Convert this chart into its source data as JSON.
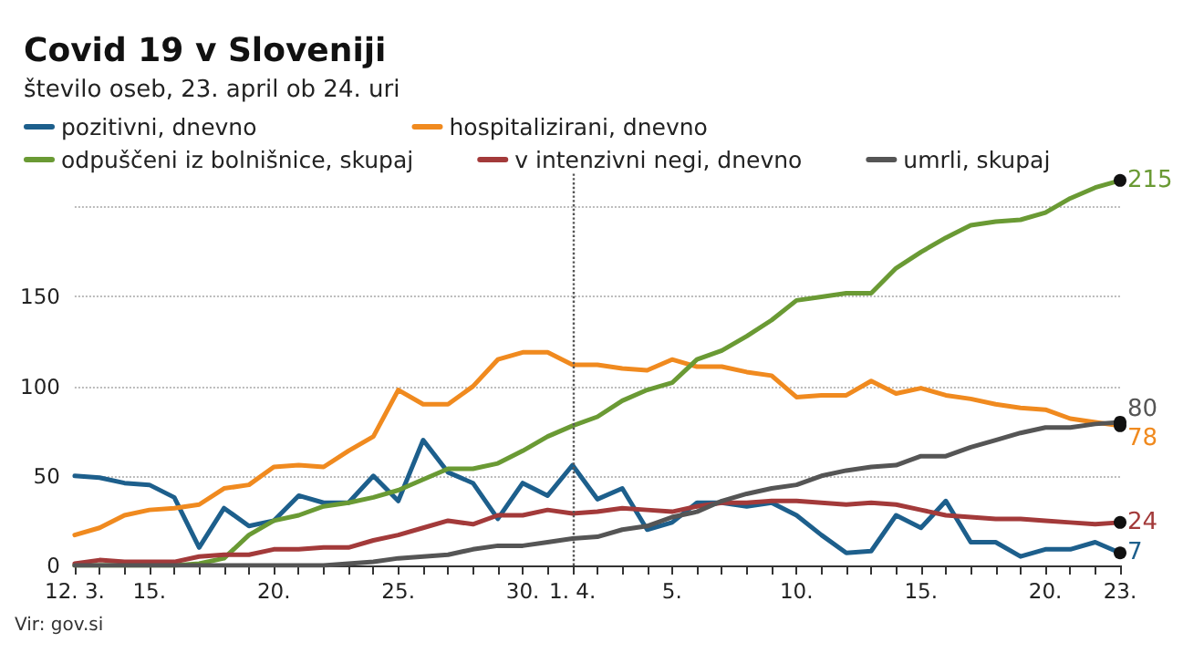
{
  "chart_data": {
    "type": "line",
    "title": "Covid 19 v Sloveniji",
    "subtitle": "število oseb, 23. april ob 24. uri",
    "categories": [
      "12. 3.",
      null,
      null,
      "15.",
      null,
      null,
      null,
      null,
      "20.",
      null,
      null,
      null,
      null,
      "25.",
      null,
      null,
      null,
      null,
      "30.",
      null,
      "1. 4.",
      null,
      null,
      null,
      "5.",
      null,
      null,
      null,
      null,
      "10.",
      null,
      null,
      null,
      null,
      "15.",
      null,
      null,
      null,
      null,
      "20.",
      null,
      null,
      "23."
    ],
    "series": [
      {
        "name": "pozitivni, dnevno",
        "color": "#1d5f8c",
        "values": [
          50,
          49,
          46,
          45,
          38,
          10,
          32,
          22,
          25,
          39,
          35,
          35,
          50,
          36,
          70,
          52,
          46,
          26,
          46,
          39,
          56,
          37,
          43,
          20,
          24,
          35,
          35,
          33,
          35,
          28,
          17,
          7,
          8,
          28,
          21,
          36,
          13,
          13,
          5,
          9,
          9,
          13,
          7
        ],
        "value_labels": [
          null,
          null,
          null,
          null,
          null,
          null,
          null,
          null,
          null,
          null,
          null,
          null,
          null,
          null,
          null,
          null,
          null,
          null,
          null,
          null,
          null,
          null,
          null,
          null,
          null,
          null,
          null,
          null,
          null,
          null,
          null,
          null,
          null,
          null,
          null,
          null,
          null,
          null,
          null,
          null,
          null,
          null,
          "7"
        ]
      },
      {
        "name": "hospitalizirani, dnevno",
        "color": "#f08a1f",
        "values": [
          17,
          21,
          28,
          31,
          32,
          34,
          43,
          45,
          55,
          56,
          55,
          64,
          72,
          98,
          90,
          90,
          100,
          115,
          119,
          119,
          112,
          112,
          110,
          109,
          115,
          111,
          111,
          108,
          106,
          94,
          95,
          95,
          103,
          96,
          99,
          95,
          93,
          90,
          88,
          87,
          82,
          80,
          78
        ],
        "value_labels": [
          null,
          null,
          null,
          null,
          null,
          null,
          null,
          null,
          null,
          null,
          null,
          null,
          null,
          null,
          null,
          null,
          null,
          null,
          null,
          null,
          null,
          null,
          null,
          null,
          null,
          null,
          null,
          null,
          null,
          null,
          null,
          null,
          null,
          null,
          null,
          null,
          null,
          null,
          null,
          null,
          null,
          null,
          "78"
        ]
      },
      {
        "name": "odpuščeni iz bolnišnice, skupaj",
        "color": "#6a9a34",
        "values": [
          0,
          0,
          0,
          0,
          0,
          1,
          4,
          17,
          25,
          28,
          33,
          35,
          38,
          42,
          48,
          54,
          54,
          57,
          64,
          72,
          78,
          83,
          92,
          98,
          102,
          115,
          120,
          128,
          137,
          148,
          150,
          152,
          152,
          166,
          175,
          183,
          190,
          192,
          193,
          197,
          205,
          211,
          215
        ],
        "value_labels": [
          null,
          null,
          null,
          null,
          null,
          null,
          null,
          null,
          null,
          null,
          null,
          null,
          null,
          null,
          null,
          null,
          null,
          null,
          null,
          null,
          null,
          null,
          null,
          null,
          null,
          null,
          null,
          null,
          null,
          null,
          null,
          null,
          null,
          null,
          null,
          null,
          null,
          null,
          null,
          null,
          null,
          null,
          "215"
        ]
      },
      {
        "name": "v intenzivni negi, dnevno",
        "color": "#a33a3a",
        "values": [
          1,
          3,
          2,
          2,
          2,
          5,
          6,
          6,
          9,
          9,
          10,
          10,
          14,
          17,
          21,
          25,
          23,
          28,
          28,
          31,
          29,
          30,
          32,
          31,
          30,
          33,
          35,
          35,
          36,
          36,
          35,
          34,
          35,
          34,
          31,
          28,
          27,
          26,
          26,
          25,
          24,
          23,
          24
        ],
        "value_labels": [
          null,
          null,
          null,
          null,
          null,
          null,
          null,
          null,
          null,
          null,
          null,
          null,
          null,
          null,
          null,
          null,
          null,
          null,
          null,
          null,
          null,
          null,
          null,
          null,
          null,
          null,
          null,
          null,
          null,
          null,
          null,
          null,
          null,
          null,
          null,
          null,
          null,
          null,
          null,
          null,
          null,
          null,
          "24"
        ]
      },
      {
        "name": "umrli, skupaj",
        "color": "#555555",
        "values": [
          0,
          0,
          0,
          0,
          0,
          0,
          0,
          0,
          0,
          0,
          0,
          1,
          2,
          4,
          5,
          6,
          9,
          11,
          11,
          13,
          15,
          16,
          20,
          22,
          27,
          30,
          36,
          40,
          43,
          45,
          50,
          53,
          55,
          56,
          61,
          61,
          66,
          70,
          74,
          77,
          77,
          79,
          80
        ],
        "value_labels": [
          null,
          null,
          null,
          null,
          null,
          null,
          null,
          null,
          null,
          null,
          null,
          null,
          null,
          null,
          null,
          null,
          null,
          null,
          null,
          null,
          null,
          null,
          null,
          null,
          null,
          null,
          null,
          null,
          null,
          null,
          null,
          null,
          null,
          null,
          null,
          null,
          null,
          null,
          null,
          null,
          null,
          null,
          "80"
        ]
      }
    ],
    "ylim": [
      0,
      220
    ],
    "yticks": [
      0,
      50,
      100,
      150,
      {
        "value": 200,
        "label": null
      }
    ],
    "grid": "y",
    "legend": "top left",
    "line_style": "solid",
    "ref_lines": [
      {
        "axis": "x",
        "value": "1. 4.",
        "color": "#555555",
        "line_style": "dotted"
      }
    ],
    "annotations": [
      "Vir: gov.si"
    ]
  }
}
